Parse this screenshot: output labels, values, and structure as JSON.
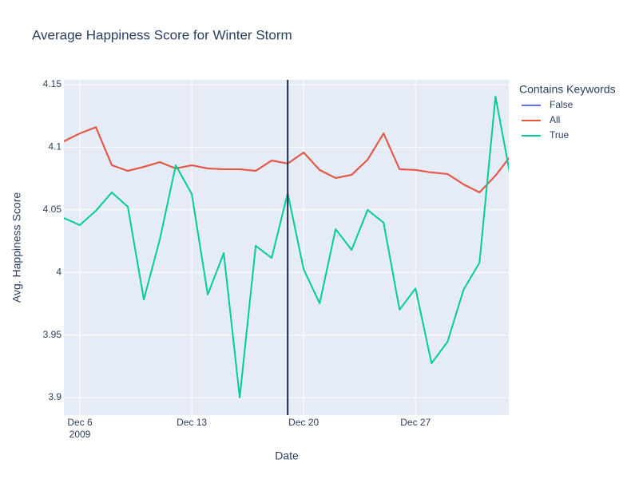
{
  "chart_data": {
    "type": "line",
    "title": "Average Happiness Score for Winter Storm",
    "x_label": "Date",
    "y_label": "Avg. Happiness Score",
    "legend_title": "Contains Keywords",
    "legend_position": "right",
    "grid": true,
    "x": [
      "2009-12-05",
      "2009-12-06",
      "2009-12-07",
      "2009-12-08",
      "2009-12-09",
      "2009-12-10",
      "2009-12-11",
      "2009-12-12",
      "2009-12-13",
      "2009-12-14",
      "2009-12-15",
      "2009-12-16",
      "2009-12-17",
      "2009-12-18",
      "2009-12-19",
      "2009-12-20",
      "2009-12-21",
      "2009-12-22",
      "2009-12-23",
      "2009-12-24",
      "2009-12-25",
      "2009-12-26",
      "2009-12-27",
      "2009-12-28",
      "2009-12-29",
      "2009-12-30",
      "2009-12-31",
      "2010-01-01",
      "2010-01-02"
    ],
    "series": [
      {
        "name": "False",
        "color": "#636efa",
        "values": [
          4.1047,
          4.111,
          4.116,
          4.0856,
          4.0811,
          4.0843,
          4.0881,
          4.083,
          4.0856,
          4.083,
          4.0824,
          4.0824,
          4.0811,
          4.0894,
          4.0869,
          4.0958,
          4.0818,
          4.0754,
          4.0779,
          4.09,
          4.111,
          4.0824,
          4.0818,
          4.0798,
          4.0786,
          4.0703,
          4.0639,
          4.0773,
          4.0939
        ]
      },
      {
        "name": "All",
        "color": "#ef553b",
        "values": [
          4.1047,
          4.111,
          4.116,
          4.0856,
          4.0811,
          4.0843,
          4.0881,
          4.083,
          4.0856,
          4.083,
          4.0824,
          4.0824,
          4.0811,
          4.0894,
          4.0869,
          4.0958,
          4.0818,
          4.0754,
          4.0779,
          4.09,
          4.111,
          4.0824,
          4.0818,
          4.0798,
          4.0786,
          4.0703,
          4.0639,
          4.0773,
          4.0939
        ]
      },
      {
        "name": "True",
        "color": "#00cc96",
        "values": [
          4.0435,
          4.0378,
          4.0492,
          4.0639,
          4.0524,
          3.9784,
          4.0263,
          4.0856,
          4.0626,
          3.9823,
          4.0154,
          3.9,
          4.0212,
          4.0116,
          4.0633,
          4.0025,
          3.9753,
          4.0346,
          4.018,
          4.0499,
          4.0397,
          3.9702,
          3.9872,
          3.9274,
          3.9446,
          3.986,
          4.0078,
          4.1404,
          4.0722
        ]
      }
    ],
    "vline": "2009-12-19",
    "vline_color": "#1b2a4a",
    "xlim": [
      "2009-12-05",
      "2010-01-01T20:00"
    ],
    "xticks": [
      {
        "value": "2009-12-06",
        "label": "Dec 6"
      },
      {
        "value": "2009-12-13",
        "label": "Dec 13"
      },
      {
        "value": "2009-12-20",
        "label": "Dec 20"
      },
      {
        "value": "2009-12-27",
        "label": "Dec 27"
      }
    ],
    "x_year_label": "2009",
    "ylim": [
      3.886,
      4.1538
    ],
    "yticks": [
      3.9,
      3.95,
      4,
      4.05,
      4.1,
      4.15
    ]
  }
}
